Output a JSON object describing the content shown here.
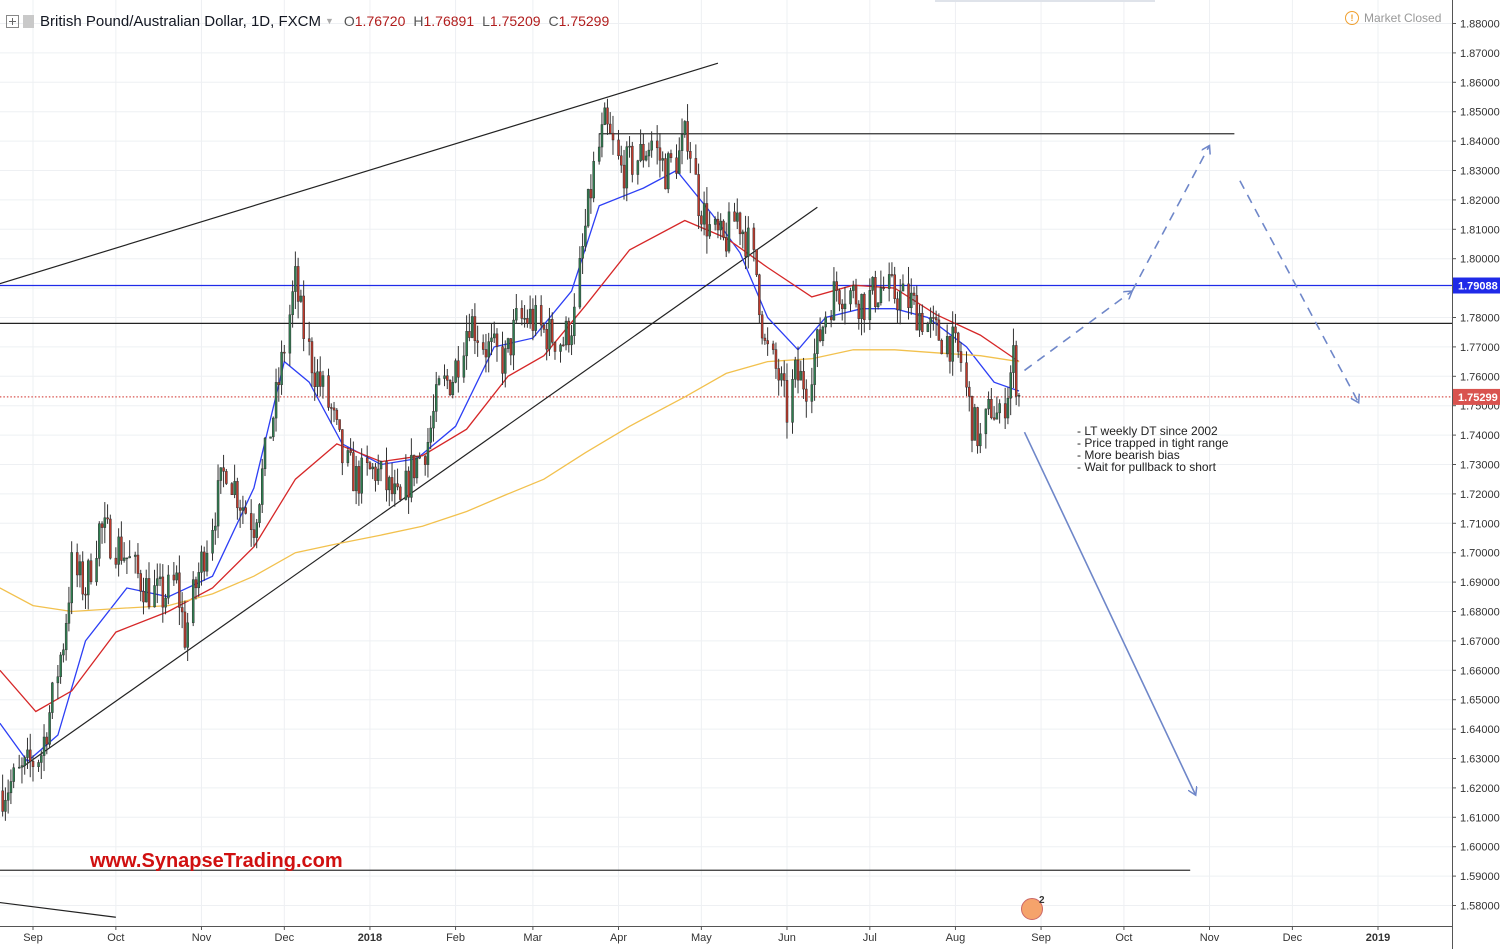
{
  "header": {
    "title": "British Pound/Australian Dollar, 1D, FXCM",
    "ohlc": [
      {
        "key": "O",
        "value": "1.76720"
      },
      {
        "key": "H",
        "value": "1.76891"
      },
      {
        "key": "L",
        "value": "1.75209"
      },
      {
        "key": "C",
        "value": "1.75299"
      }
    ]
  },
  "status": {
    "market": "Market Closed"
  },
  "annotations": {
    "notes": [
      "- LT weekly DT since 2002",
      "- Price trapped in tight range",
      "- More bearish bias",
      "- Wait for pullback to short"
    ],
    "website": "www.SynapseTrading.com",
    "badge_count": "2"
  },
  "colors": {
    "up": "#2e7d4f",
    "down": "#c0392b",
    "ma_fast": "#2d3ff5",
    "ma_mid": "#d62728",
    "ma_slow": "#f2c14e",
    "hline_blue": "#1f2ae8",
    "price_line": "#d9534f",
    "arrow": "#6f87c9",
    "trend": "#222222"
  },
  "chart_data": {
    "type": "candlestick",
    "symbol": "GBPAUD",
    "timeframe": "1D",
    "ylim": [
      1.5767,
      1.8865
    ],
    "y_ticks": [
      "1.88000",
      "1.87000",
      "1.86000",
      "1.85000",
      "1.84000",
      "1.83000",
      "1.82000",
      "1.81000",
      "1.80000",
      "1.79000",
      "1.78000",
      "1.77000",
      "1.76000",
      "1.75000",
      "1.74000",
      "1.73000",
      "1.72000",
      "1.71000",
      "1.70000",
      "1.69000",
      "1.68000",
      "1.67000",
      "1.66000",
      "1.65000",
      "1.64000",
      "1.63000",
      "1.62000",
      "1.61000",
      "1.60000",
      "1.59000",
      "1.58000"
    ],
    "x_ticks": [
      {
        "label": "Sep",
        "date": "2017-09-01"
      },
      {
        "label": "Oct",
        "date": "2017-10-01"
      },
      {
        "label": "Nov",
        "date": "2017-11-01"
      },
      {
        "label": "Dec",
        "date": "2017-12-01"
      },
      {
        "label": "2018",
        "date": "2018-01-01"
      },
      {
        "label": "Feb",
        "date": "2018-02-01"
      },
      {
        "label": "Mar",
        "date": "2018-03-01"
      },
      {
        "label": "Apr",
        "date": "2018-04-01"
      },
      {
        "label": "May",
        "date": "2018-05-01"
      },
      {
        "label": "Jun",
        "date": "2018-06-01"
      },
      {
        "label": "Jul",
        "date": "2018-07-01"
      },
      {
        "label": "Aug",
        "date": "2018-08-01"
      },
      {
        "label": "Sep",
        "date": "2018-09-01"
      },
      {
        "label": "Oct",
        "date": "2018-10-01"
      },
      {
        "label": "Nov",
        "date": "2018-11-01"
      },
      {
        "label": "Dec",
        "date": "2018-12-01"
      },
      {
        "label": "2019",
        "date": "2019-01-01"
      }
    ],
    "price_labels": [
      {
        "value": 1.79088,
        "label": "1.79088",
        "color": "#1f2ae8"
      },
      {
        "value": 1.75299,
        "label": "1.75299",
        "color": "#d9534f"
      }
    ],
    "horizontal_lines": [
      {
        "value": 1.79088,
        "color": "#1f2ae8",
        "from": "2017-08-20",
        "to": "2019-01-31"
      },
      {
        "value": 1.778,
        "color": "#222222",
        "from": "2017-08-20",
        "to": "2019-01-31"
      },
      {
        "value": 1.8425,
        "color": "#333333",
        "from": "2018-03-25",
        "to": "2018-11-10"
      },
      {
        "value": 1.592,
        "color": "#333333",
        "from": "2017-08-20",
        "to": "2018-10-25"
      },
      {
        "value": 1.75299,
        "color": "#d9534f",
        "style": "dotted",
        "from": "2017-08-20",
        "to": "2019-01-31"
      }
    ],
    "trend_lines": [
      {
        "from": [
          "2017-08-20",
          1.7915
        ],
        "to": [
          "2018-05-07",
          1.8665
        ]
      },
      {
        "from": [
          "2017-08-28",
          1.627
        ],
        "to": [
          "2018-06-12",
          1.8175
        ]
      },
      {
        "from": [
          "2017-08-20",
          1.581
        ],
        "to": [
          "2017-10-01",
          1.576
        ]
      }
    ],
    "projection_arrows": [
      {
        "dashed": true,
        "points": [
          [
            "2018-08-26",
            1.762
          ],
          [
            "2018-10-04",
            1.789
          ]
        ]
      },
      {
        "dashed": true,
        "points": [
          [
            "2018-10-04",
            1.789
          ],
          [
            "2018-11-01",
            1.8385
          ]
        ]
      },
      {
        "dashed": true,
        "points": [
          [
            "2018-11-12",
            1.8265
          ],
          [
            "2018-12-25",
            1.751
          ]
        ]
      },
      {
        "dashed": false,
        "points": [
          [
            "2018-08-26",
            1.741
          ],
          [
            "2018-10-27",
            1.6175
          ]
        ]
      }
    ],
    "moving_averages": [
      {
        "name": "MA fast",
        "color": "#2d3ff5",
        "points": [
          [
            "2017-08-20",
            1.642
          ],
          [
            "2017-08-30",
            1.629
          ],
          [
            "2017-09-10",
            1.638
          ],
          [
            "2017-09-20",
            1.67
          ],
          [
            "2017-10-05",
            1.688
          ],
          [
            "2017-10-20",
            1.685
          ],
          [
            "2017-11-05",
            1.692
          ],
          [
            "2017-11-20",
            1.722
          ],
          [
            "2017-12-01",
            1.765
          ],
          [
            "2017-12-10",
            1.758
          ],
          [
            "2017-12-22",
            1.737
          ],
          [
            "2018-01-05",
            1.73
          ],
          [
            "2018-01-18",
            1.732
          ],
          [
            "2018-02-01",
            1.743
          ],
          [
            "2018-02-15",
            1.77
          ],
          [
            "2018-03-01",
            1.773
          ],
          [
            "2018-03-15",
            1.789
          ],
          [
            "2018-03-25",
            1.818
          ],
          [
            "2018-04-10",
            1.824
          ],
          [
            "2018-04-22",
            1.83
          ],
          [
            "2018-05-05",
            1.815
          ],
          [
            "2018-05-15",
            1.802
          ],
          [
            "2018-05-25",
            1.78
          ],
          [
            "2018-06-05",
            1.769
          ],
          [
            "2018-06-15",
            1.78
          ],
          [
            "2018-06-28",
            1.783
          ],
          [
            "2018-07-10",
            1.783
          ],
          [
            "2018-07-22",
            1.78
          ],
          [
            "2018-08-05",
            1.77
          ],
          [
            "2018-08-15",
            1.758
          ],
          [
            "2018-08-24",
            1.755
          ]
        ]
      },
      {
        "name": "MA mid",
        "color": "#d62728",
        "points": [
          [
            "2017-08-20",
            1.66
          ],
          [
            "2017-09-02",
            1.646
          ],
          [
            "2017-09-15",
            1.653
          ],
          [
            "2017-10-01",
            1.673
          ],
          [
            "2017-10-20",
            1.68
          ],
          [
            "2017-11-05",
            1.688
          ],
          [
            "2017-11-20",
            1.702
          ],
          [
            "2017-12-05",
            1.725
          ],
          [
            "2017-12-20",
            1.737
          ],
          [
            "2018-01-05",
            1.731
          ],
          [
            "2018-01-20",
            1.733
          ],
          [
            "2018-02-05",
            1.742
          ],
          [
            "2018-02-20",
            1.76
          ],
          [
            "2018-03-05",
            1.767
          ],
          [
            "2018-03-20",
            1.784
          ],
          [
            "2018-04-05",
            1.803
          ],
          [
            "2018-04-25",
            1.813
          ],
          [
            "2018-05-10",
            1.807
          ],
          [
            "2018-05-25",
            1.797
          ],
          [
            "2018-06-10",
            1.787
          ],
          [
            "2018-06-25",
            1.791
          ],
          [
            "2018-07-10",
            1.79
          ],
          [
            "2018-07-25",
            1.781
          ],
          [
            "2018-08-10",
            1.774
          ],
          [
            "2018-08-24",
            1.765
          ]
        ]
      },
      {
        "name": "MA slow",
        "color": "#f2c14e",
        "points": [
          [
            "2017-08-20",
            1.688
          ],
          [
            "2017-09-01",
            1.682
          ],
          [
            "2017-09-15",
            1.68
          ],
          [
            "2017-10-01",
            1.681
          ],
          [
            "2017-10-20",
            1.682
          ],
          [
            "2017-11-05",
            1.686
          ],
          [
            "2017-11-20",
            1.692
          ],
          [
            "2017-12-05",
            1.7
          ],
          [
            "2017-12-20",
            1.703
          ],
          [
            "2018-01-05",
            1.706
          ],
          [
            "2018-01-20",
            1.709
          ],
          [
            "2018-02-05",
            1.714
          ],
          [
            "2018-02-20",
            1.72
          ],
          [
            "2018-03-05",
            1.725
          ],
          [
            "2018-03-20",
            1.734
          ],
          [
            "2018-04-05",
            1.743
          ],
          [
            "2018-04-25",
            1.753
          ],
          [
            "2018-05-10",
            1.761
          ],
          [
            "2018-05-25",
            1.765
          ],
          [
            "2018-06-10",
            1.766
          ],
          [
            "2018-06-25",
            1.769
          ],
          [
            "2018-07-10",
            1.769
          ],
          [
            "2018-07-25",
            1.768
          ],
          [
            "2018-08-10",
            1.767
          ],
          [
            "2018-08-24",
            1.765
          ]
        ]
      }
    ],
    "price_path": [
      [
        "2017-08-21",
        1.619
      ],
      [
        "2017-08-28",
        1.625
      ],
      [
        "2017-09-04",
        1.632
      ],
      [
        "2017-09-08",
        1.65
      ],
      [
        "2017-09-12",
        1.67
      ],
      [
        "2017-09-15",
        1.695
      ],
      [
        "2017-09-20",
        1.688
      ],
      [
        "2017-09-25",
        1.708
      ],
      [
        "2017-09-29",
        1.705
      ],
      [
        "2017-10-04",
        1.7
      ],
      [
        "2017-10-09",
        1.692
      ],
      [
        "2017-10-13",
        1.687
      ],
      [
        "2017-10-18",
        1.685
      ],
      [
        "2017-10-23",
        1.69
      ],
      [
        "2017-10-26",
        1.672
      ],
      [
        "2017-10-31",
        1.693
      ],
      [
        "2017-11-06",
        1.715
      ],
      [
        "2017-11-10",
        1.73
      ],
      [
        "2017-11-15",
        1.718
      ],
      [
        "2017-11-20",
        1.71
      ],
      [
        "2017-11-24",
        1.732
      ],
      [
        "2017-11-28",
        1.752
      ],
      [
        "2017-12-01",
        1.77
      ],
      [
        "2017-12-05",
        1.792
      ],
      [
        "2017-12-08",
        1.775
      ],
      [
        "2017-12-12",
        1.762
      ],
      [
        "2017-12-18",
        1.748
      ],
      [
        "2017-12-22",
        1.732
      ],
      [
        "2017-12-27",
        1.725
      ],
      [
        "2018-01-03",
        1.728
      ],
      [
        "2018-01-09",
        1.72
      ],
      [
        "2018-01-12",
        1.715
      ],
      [
        "2018-01-16",
        1.728
      ],
      [
        "2018-01-22",
        1.738
      ],
      [
        "2018-01-26",
        1.755
      ],
      [
        "2018-01-31",
        1.76
      ],
      [
        "2018-02-06",
        1.78
      ],
      [
        "2018-02-12",
        1.77
      ],
      [
        "2018-02-19",
        1.765
      ],
      [
        "2018-02-23",
        1.778
      ],
      [
        "2018-02-28",
        1.78
      ],
      [
        "2018-03-05",
        1.775
      ],
      [
        "2018-03-12",
        1.772
      ],
      [
        "2018-03-16",
        1.78
      ],
      [
        "2018-03-20",
        1.81
      ],
      [
        "2018-03-23",
        1.83
      ],
      [
        "2018-03-27",
        1.845
      ],
      [
        "2018-04-02",
        1.83
      ],
      [
        "2018-04-09",
        1.835
      ],
      [
        "2018-04-13",
        1.84
      ],
      [
        "2018-04-18",
        1.83
      ],
      [
        "2018-04-23",
        1.835
      ],
      [
        "2018-04-26",
        1.843
      ],
      [
        "2018-04-30",
        1.82
      ],
      [
        "2018-05-04",
        1.81
      ],
      [
        "2018-05-09",
        1.805
      ],
      [
        "2018-05-14",
        1.815
      ],
      [
        "2018-05-18",
        1.805
      ],
      [
        "2018-05-21",
        1.795
      ],
      [
        "2018-05-24",
        1.77
      ],
      [
        "2018-05-29",
        1.76
      ],
      [
        "2018-06-01",
        1.748
      ],
      [
        "2018-06-04",
        1.76
      ],
      [
        "2018-06-08",
        1.758
      ],
      [
        "2018-06-12",
        1.77
      ],
      [
        "2018-06-15",
        1.782
      ],
      [
        "2018-06-19",
        1.79
      ],
      [
        "2018-06-25",
        1.788
      ],
      [
        "2018-06-29",
        1.785
      ],
      [
        "2018-07-05",
        1.79
      ],
      [
        "2018-07-10",
        1.788
      ],
      [
        "2018-07-16",
        1.785
      ],
      [
        "2018-07-20",
        1.78
      ],
      [
        "2018-07-24",
        1.775
      ],
      [
        "2018-07-30",
        1.772
      ],
      [
        "2018-08-03",
        1.765
      ],
      [
        "2018-08-07",
        1.745
      ],
      [
        "2018-08-10",
        1.738
      ],
      [
        "2018-08-14",
        1.75
      ],
      [
        "2018-08-17",
        1.745
      ],
      [
        "2018-08-20",
        1.756
      ],
      [
        "2018-08-22",
        1.766
      ],
      [
        "2018-08-24",
        1.753
      ]
    ]
  }
}
